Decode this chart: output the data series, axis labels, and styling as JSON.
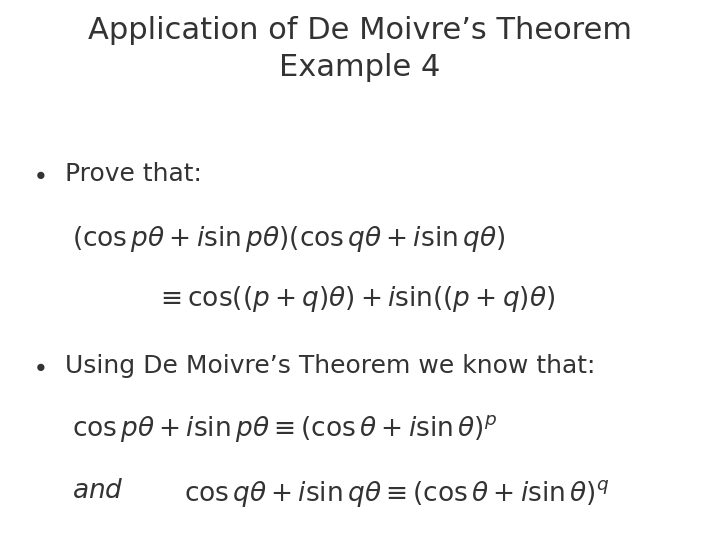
{
  "title_line1": "Application of De Moivre’s Theorem",
  "title_line2": "Example 4",
  "title_fontsize": 22,
  "title_color": "#333333",
  "bg_color": "#ffffff",
  "bullet1_text": "Prove that:",
  "bullet2_text": "Using De Moivre’s Theorem we know that:",
  "bullet_fontsize": 18,
  "math_fontsize": 19,
  "eq1": "(\\cos p\\theta + i\\sin p\\theta)(\\cos q\\theta + i\\sin q\\theta)",
  "eq2": "\\equiv \\cos((p+q)\\theta) + i\\sin((p+q)\\theta)",
  "eq3": "\\cos p\\theta + i\\sin p\\theta \\equiv (\\cos\\theta + i\\sin\\theta)^p",
  "eq4_and": "and",
  "eq4": "\\cos q\\theta + i\\sin q\\theta \\equiv (\\cos\\theta + i\\sin\\theta)^q"
}
